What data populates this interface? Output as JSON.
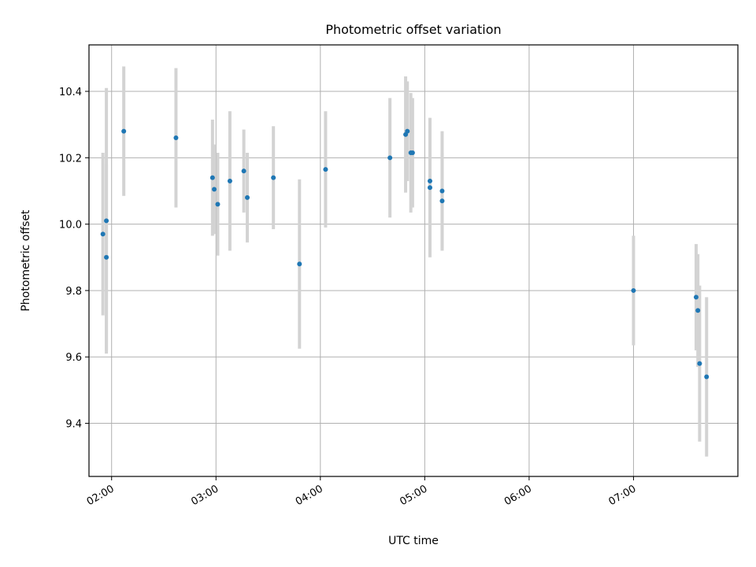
{
  "chart_data": {
    "type": "scatter",
    "title": "Photometric offset variation",
    "xlabel": "UTC time",
    "ylabel": "Photometric offset",
    "x_ticks": [
      "02:00",
      "03:00",
      "04:00",
      "05:00",
      "06:00",
      "07:00"
    ],
    "x_tick_minutes": [
      120,
      180,
      240,
      300,
      360,
      420
    ],
    "y_ticks": [
      "9.4",
      "9.6",
      "9.8",
      "10.0",
      "10.2",
      "10.4"
    ],
    "xlim": [
      "01:47",
      "08:00"
    ],
    "ylim": [
      9.24,
      10.54
    ],
    "grid": true,
    "point_color": "#1f77b4",
    "errorbar_color": "#d3d3d3",
    "points": [
      {
        "t": "01:55",
        "y": 9.97,
        "err": 0.245
      },
      {
        "t": "01:57",
        "y": 10.01,
        "err": 0.4
      },
      {
        "t": "01:57",
        "y": 9.9,
        "err": 0.28
      },
      {
        "t": "02:07",
        "y": 10.28,
        "err": 0.195
      },
      {
        "t": "02:37",
        "y": 10.26,
        "err": 0.21
      },
      {
        "t": "02:58",
        "y": 10.14,
        "err": 0.175
      },
      {
        "t": "02:59",
        "y": 10.105,
        "err": 0.135
      },
      {
        "t": "03:01",
        "y": 10.06,
        "err": 0.155
      },
      {
        "t": "03:08",
        "y": 10.13,
        "err": 0.21
      },
      {
        "t": "03:16",
        "y": 10.16,
        "err": 0.125
      },
      {
        "t": "03:18",
        "y": 10.08,
        "err": 0.135
      },
      {
        "t": "03:33",
        "y": 10.14,
        "err": 0.155
      },
      {
        "t": "03:48",
        "y": 9.88,
        "err": 0.255
      },
      {
        "t": "04:03",
        "y": 10.165,
        "err": 0.175
      },
      {
        "t": "04:40",
        "y": 10.2,
        "err": 0.18
      },
      {
        "t": "04:49",
        "y": 10.27,
        "err": 0.175
      },
      {
        "t": "04:50",
        "y": 10.28,
        "err": 0.15
      },
      {
        "t": "04:52",
        "y": 10.215,
        "err": 0.18
      },
      {
        "t": "04:53",
        "y": 10.215,
        "err": 0.165
      },
      {
        "t": "05:03",
        "y": 10.13,
        "err": 0.19
      },
      {
        "t": "05:03",
        "y": 10.11,
        "err": 0.21
      },
      {
        "t": "05:10",
        "y": 10.1,
        "err": 0.18
      },
      {
        "t": "05:10",
        "y": 10.07,
        "err": 0.145
      },
      {
        "t": "07:00",
        "y": 9.8,
        "err": 0.165
      },
      {
        "t": "07:36",
        "y": 9.78,
        "err": 0.16
      },
      {
        "t": "07:37",
        "y": 9.74,
        "err": 0.17
      },
      {
        "t": "07:38",
        "y": 9.58,
        "err": 0.235
      },
      {
        "t": "07:42",
        "y": 9.54,
        "err": 0.24
      }
    ]
  }
}
